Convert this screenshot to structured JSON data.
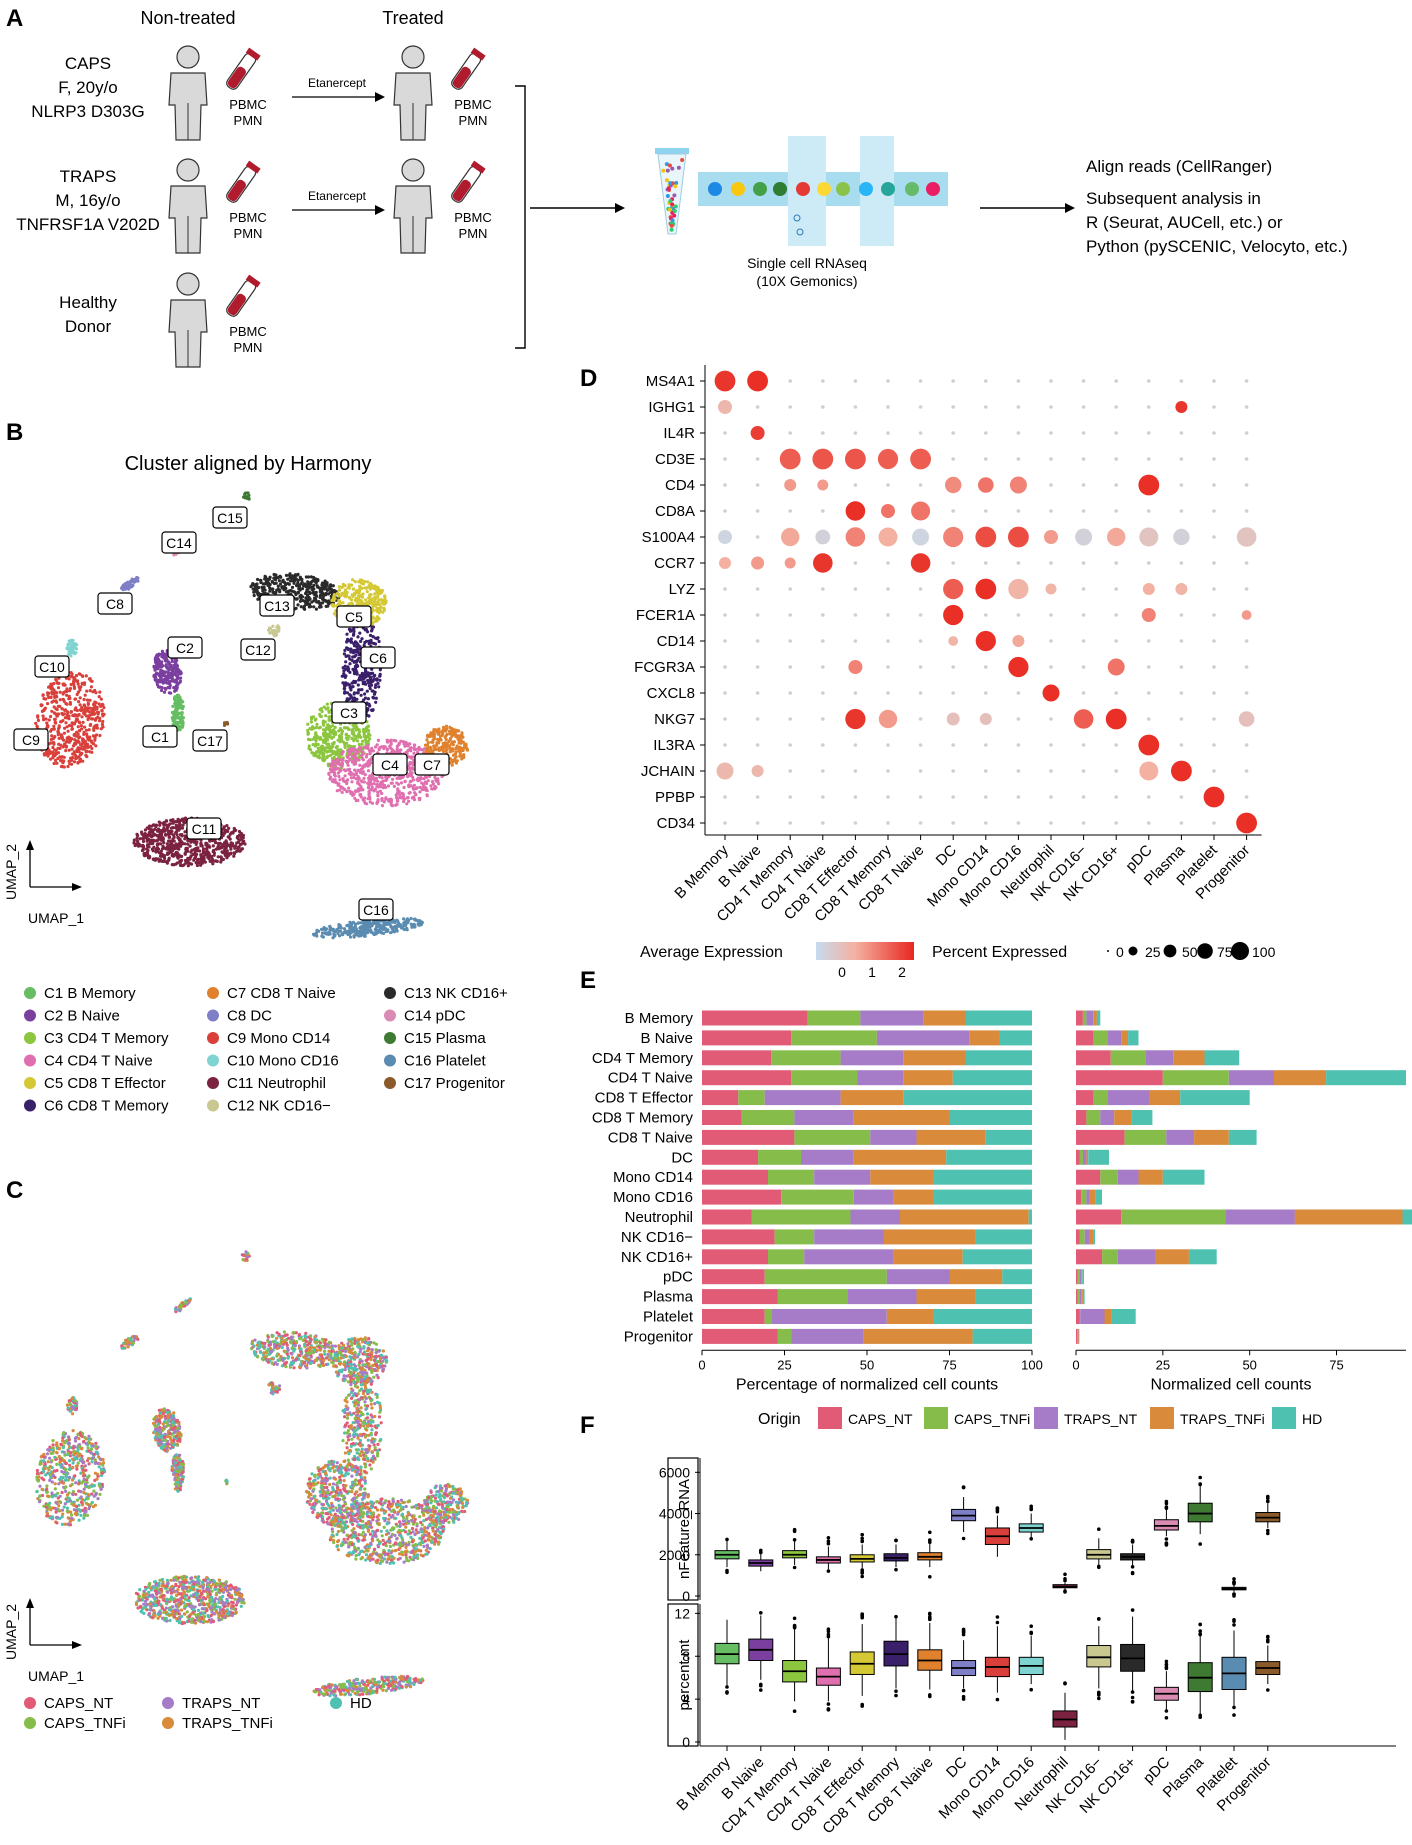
{
  "colors": {
    "clusters": [
      "#66bd63",
      "#7b3fa0",
      "#8cc63f",
      "#e06fb0",
      "#d4c935",
      "#3a1f6b",
      "#e0812e",
      "#7f7fc8",
      "#d9403b",
      "#7fd3d0",
      "#7a2240",
      "#c9c890",
      "#2a2a2a",
      "#d98bb3",
      "#3e7a32",
      "#5a8bb0",
      "#8a5a2b"
    ],
    "origins": [
      "#e25b76",
      "#86bd4a",
      "#a67bc8",
      "#d98a3a",
      "#4fc1b0"
    ],
    "dot_low": "#c6dbef",
    "dot_high": "#e8271f",
    "background": "#ffffff",
    "text": "#000000"
  },
  "panelA": {
    "label": "A",
    "col_non_treated": "Non-treated",
    "col_treated": "Treated",
    "patients": [
      {
        "lines": [
          "CAPS",
          "F, 20y/o",
          "NLRP3 D303G"
        ],
        "treated": true
      },
      {
        "lines": [
          "TRAPS",
          "M, 16y/o",
          "TNFRSF1A V202D"
        ],
        "treated": true
      },
      {
        "lines": [
          "Healthy",
          "Donor"
        ],
        "treated": false
      }
    ],
    "sample_lines": [
      "PBMC",
      "PMN"
    ],
    "treatment": "Etanercept",
    "seq_caption": [
      "Single cell RNAseq",
      "(10X Gemonics)"
    ],
    "analysis_lines": [
      "Align reads (CellRanger)",
      "Subsequent analysis in",
      "R (Seurat, AUCell, etc.) or",
      "Python (pySCENIC, Velocyto, etc.)"
    ]
  },
  "panelB": {
    "label": "B",
    "title": "Cluster aligned by Harmony",
    "xlabel": "UMAP_1",
    "ylabel": "UMAP_2",
    "cluster_tags": [
      "C1",
      "C2",
      "C3",
      "C4",
      "C5",
      "C6",
      "C7",
      "C8",
      "C9",
      "C10",
      "C11",
      "C12",
      "C13",
      "C14",
      "C15",
      "C16",
      "C17"
    ],
    "legend": [
      "C1  B Memory",
      "C2  B Naive",
      "C3  CD4 T Memory",
      "C4  CD4 T Naive",
      "C5  CD8 T Effector",
      "C6  CD8 T Memory",
      "C7  CD8 T Naive",
      "C8  DC",
      "C9  Mono CD14",
      "C10 Mono CD16",
      "C11 Neutrophil",
      "C12 NK CD16−",
      "C13 NK CD16+",
      "C14 pDC",
      "C15 Plasma",
      "C16 Platelet",
      "C17 Progenitor"
    ]
  },
  "panelC": {
    "label": "C",
    "xlabel": "UMAP_1",
    "ylabel": "UMAP_2",
    "legend": [
      "CAPS_NT",
      "CAPS_TNFi",
      "TRAPS_NT",
      "TRAPS_TNFi",
      "HD"
    ]
  },
  "panelD": {
    "label": "D",
    "legend_avg": "Average Expression",
    "legend_avg_ticks": [
      "0",
      "1",
      "2"
    ],
    "legend_pct": "Percent Expressed",
    "legend_pct_ticks": [
      "0",
      "25",
      "50",
      "75",
      "100"
    ]
  },
  "panelE": {
    "label": "E",
    "legend_title": "Origin"
  },
  "panelF": {
    "label": "F"
  },
  "chart_data": [
    {
      "type": "heatmap",
      "panel": "D",
      "genes": [
        "MS4A1",
        "IGHG1",
        "IL4R",
        "CD3E",
        "CD4",
        "CD8A",
        "S100A4",
        "CCR7",
        "LYZ",
        "FCER1A",
        "CD14",
        "FCGR3A",
        "CXCL8",
        "NKG7",
        "IL3RA",
        "JCHAIN",
        "PPBP",
        "CD34"
      ],
      "cell_types": [
        "B Memory",
        "B Naive",
        "CD4 T Memory",
        "CD4 T Naive",
        "CD8 T Effector",
        "CD8 T Memory",
        "CD8 T Naive",
        "DC",
        "Mono CD14",
        "Mono CD16",
        "Neutrophil",
        "NK CD16−",
        "NK CD16+",
        "pDC",
        "Plasma",
        "Platelet",
        "Progenitor"
      ],
      "avg_expression_range": [
        -0.5,
        2.5
      ],
      "percent_expressed_range": [
        0,
        100
      ]
    },
    {
      "type": "bar",
      "panel": "E-left",
      "orientation": "horizontal",
      "stacked": true,
      "categories": [
        "B Memory",
        "B Naive",
        "CD4 T Memory",
        "CD4 T Naive",
        "CD8 T Effector",
        "CD8 T Memory",
        "CD8 T Naive",
        "DC",
        "Mono CD14",
        "Mono CD16",
        "Neutrophil",
        "NK CD16−",
        "NK CD16+",
        "pDC",
        "Plasma",
        "Platelet",
        "Progenitor"
      ],
      "series": [
        {
          "name": "CAPS_NT",
          "values": [
            32,
            27,
            21,
            27,
            11,
            12,
            28,
            17,
            20,
            24,
            15,
            22,
            20,
            19,
            23,
            19,
            23
          ]
        },
        {
          "name": "CAPS_TNFi",
          "values": [
            16,
            26,
            21,
            20,
            8,
            16,
            23,
            13,
            14,
            22,
            30,
            12,
            11,
            37,
            21,
            2,
            4
          ]
        },
        {
          "name": "TRAPS_NT",
          "values": [
            19,
            28,
            19,
            14,
            23,
            18,
            14,
            16,
            17,
            12,
            15,
            21,
            27,
            19,
            21,
            35,
            22
          ]
        },
        {
          "name": "TRAPS_TNFi",
          "values": [
            13,
            9,
            19,
            15,
            19,
            29,
            21,
            28,
            19,
            12,
            39,
            28,
            21,
            16,
            18,
            14,
            33
          ]
        },
        {
          "name": "HD",
          "values": [
            20,
            10,
            20,
            24,
            39,
            25,
            14,
            26,
            30,
            30,
            1,
            17,
            21,
            9,
            17,
            30,
            18
          ]
        }
      ],
      "xlabel": "Percentage of normalized cell counts",
      "xlim": [
        0,
        100
      ],
      "xticks": [
        "0",
        "25",
        "50",
        "75",
        "100"
      ]
    },
    {
      "type": "bar",
      "panel": "E-right",
      "orientation": "horizontal",
      "stacked": true,
      "categories": [
        "B Memory",
        "B Naive",
        "CD4 T Memory",
        "CD4 T Naive",
        "CD8 T Effector",
        "CD8 T Memory",
        "CD8 T Naive",
        "DC",
        "Mono CD14",
        "Mono CD16",
        "Neutrophil",
        "NK CD16−",
        "NK CD16+",
        "pDC",
        "Plasma",
        "Platelet",
        "Progenitor"
      ],
      "series": [
        {
          "name": "CAPS_NT",
          "values": [
            2,
            5,
            10,
            25,
            5,
            3,
            14,
            1,
            7,
            1.5,
            13,
            1,
            7.5,
            0.5,
            0.5,
            1,
            0.3
          ]
        },
        {
          "name": "CAPS_TNFi",
          "values": [
            1,
            4,
            10,
            19,
            4,
            4,
            12,
            1,
            5,
            1.5,
            30,
            1.5,
            4.5,
            0.5,
            0.5,
            0.2,
            0.1
          ]
        },
        {
          "name": "TRAPS_NT",
          "values": [
            2,
            4,
            8,
            13,
            12,
            4,
            8,
            1,
            6,
            1,
            20,
            1.5,
            11,
            0.5,
            0.5,
            7,
            0.3
          ]
        },
        {
          "name": "TRAPS_TNFi",
          "values": [
            1,
            2,
            9,
            15,
            9,
            5,
            10,
            0.5,
            7,
            1.5,
            31,
            1,
            9.5,
            0.3,
            0.5,
            2,
            0.2
          ]
        },
        {
          "name": "HD",
          "values": [
            1,
            3,
            10,
            23,
            20,
            6,
            8,
            6,
            12,
            2,
            3,
            0.5,
            8,
            0.5,
            0.5,
            7,
            0.1
          ]
        }
      ],
      "xlabel": "Normalized cell counts",
      "xlim": [
        0,
        95
      ],
      "xticks": [
        "0",
        "25",
        "50",
        "75"
      ]
    },
    {
      "type": "box",
      "panel": "F-top",
      "ylabel": "nFeature_RNA",
      "ylim": [
        0,
        6500
      ],
      "yticks": [
        "0",
        "2000",
        "4000",
        "6000"
      ],
      "categories": [
        "B Memory",
        "B Naive",
        "CD4 T Memory",
        "CD4 T Naive",
        "CD8 T Effector",
        "CD8 T Memory",
        "CD8 T Naive",
        "DC",
        "Mono CD14",
        "Mono CD16",
        "Neutrophil",
        "NK CD16−",
        "NK CD16+",
        "pDC",
        "Plasma",
        "Platelet",
        "Progenitor"
      ],
      "median": [
        2000,
        1600,
        2000,
        1750,
        1800,
        1850,
        1900,
        3900,
        2900,
        3300,
        450,
        2000,
        1900,
        3400,
        4000,
        350,
        3800
      ],
      "q1": [
        1800,
        1450,
        1850,
        1600,
        1650,
        1700,
        1750,
        3650,
        2500,
        3100,
        400,
        1800,
        1750,
        3200,
        3600,
        300,
        3600
      ],
      "q3": [
        2200,
        1750,
        2200,
        1900,
        2000,
        2050,
        2100,
        4200,
        3300,
        3500,
        550,
        2250,
        2050,
        3700,
        4500,
        420,
        4050
      ],
      "low": [
        1400,
        1200,
        1500,
        1300,
        1300,
        1400,
        1400,
        3100,
        1900,
        2800,
        300,
        1500,
        1500,
        2900,
        3000,
        200,
        3300
      ],
      "high": [
        2700,
        2100,
        2700,
        2400,
        2500,
        2500,
        2600,
        4800,
        3900,
        4000,
        650,
        2800,
        2500,
        4200,
        5400,
        550,
        4500
      ]
    },
    {
      "type": "box",
      "panel": "F-bottom",
      "ylabel": "percent.mt",
      "ylim": [
        0,
        12.5
      ],
      "yticks": [
        "0",
        "4",
        "8",
        "12"
      ],
      "categories": [
        "B Memory",
        "B Naive",
        "CD4 T Memory",
        "CD4 T Naive",
        "CD8 T Effector",
        "CD8 T Memory",
        "CD8 T Naive",
        "DC",
        "Mono CD14",
        "Mono CD16",
        "Neutrophil",
        "NK CD16−",
        "NK CD16+",
        "pDC",
        "Plasma",
        "Platelet",
        "Progenitor"
      ],
      "median": [
        8.2,
        8.6,
        6.6,
        6.1,
        7.3,
        8.2,
        7.6,
        6.9,
        7.0,
        7.1,
        2.1,
        7.9,
        7.8,
        4.5,
        6.0,
        6.4,
        6.9
      ],
      "q1": [
        7.3,
        7.6,
        5.6,
        5.3,
        6.3,
        7.1,
        6.7,
        6.2,
        6.1,
        6.3,
        1.4,
        7.0,
        6.6,
        3.9,
        4.7,
        4.9,
        6.3
      ],
      "q3": [
        9.2,
        9.6,
        7.6,
        6.9,
        8.4,
        9.4,
        8.6,
        7.6,
        7.9,
        7.9,
        2.9,
        9.0,
        9.1,
        5.1,
        7.4,
        7.9,
        7.5
      ],
      "low": [
        5.2,
        5.8,
        3.8,
        3.8,
        4.3,
        5.0,
        4.9,
        5.0,
        4.6,
        5.4,
        0.2,
        5.0,
        4.7,
        3.0,
        2.6,
        3.3,
        5.4
      ],
      "high": [
        11.4,
        11.8,
        10.6,
        9.8,
        11.0,
        11.6,
        11.1,
        9.5,
        10.8,
        9.9,
        4.6,
        10.8,
        11.7,
        6.6,
        10.0,
        10.4,
        9.0
      ]
    }
  ]
}
